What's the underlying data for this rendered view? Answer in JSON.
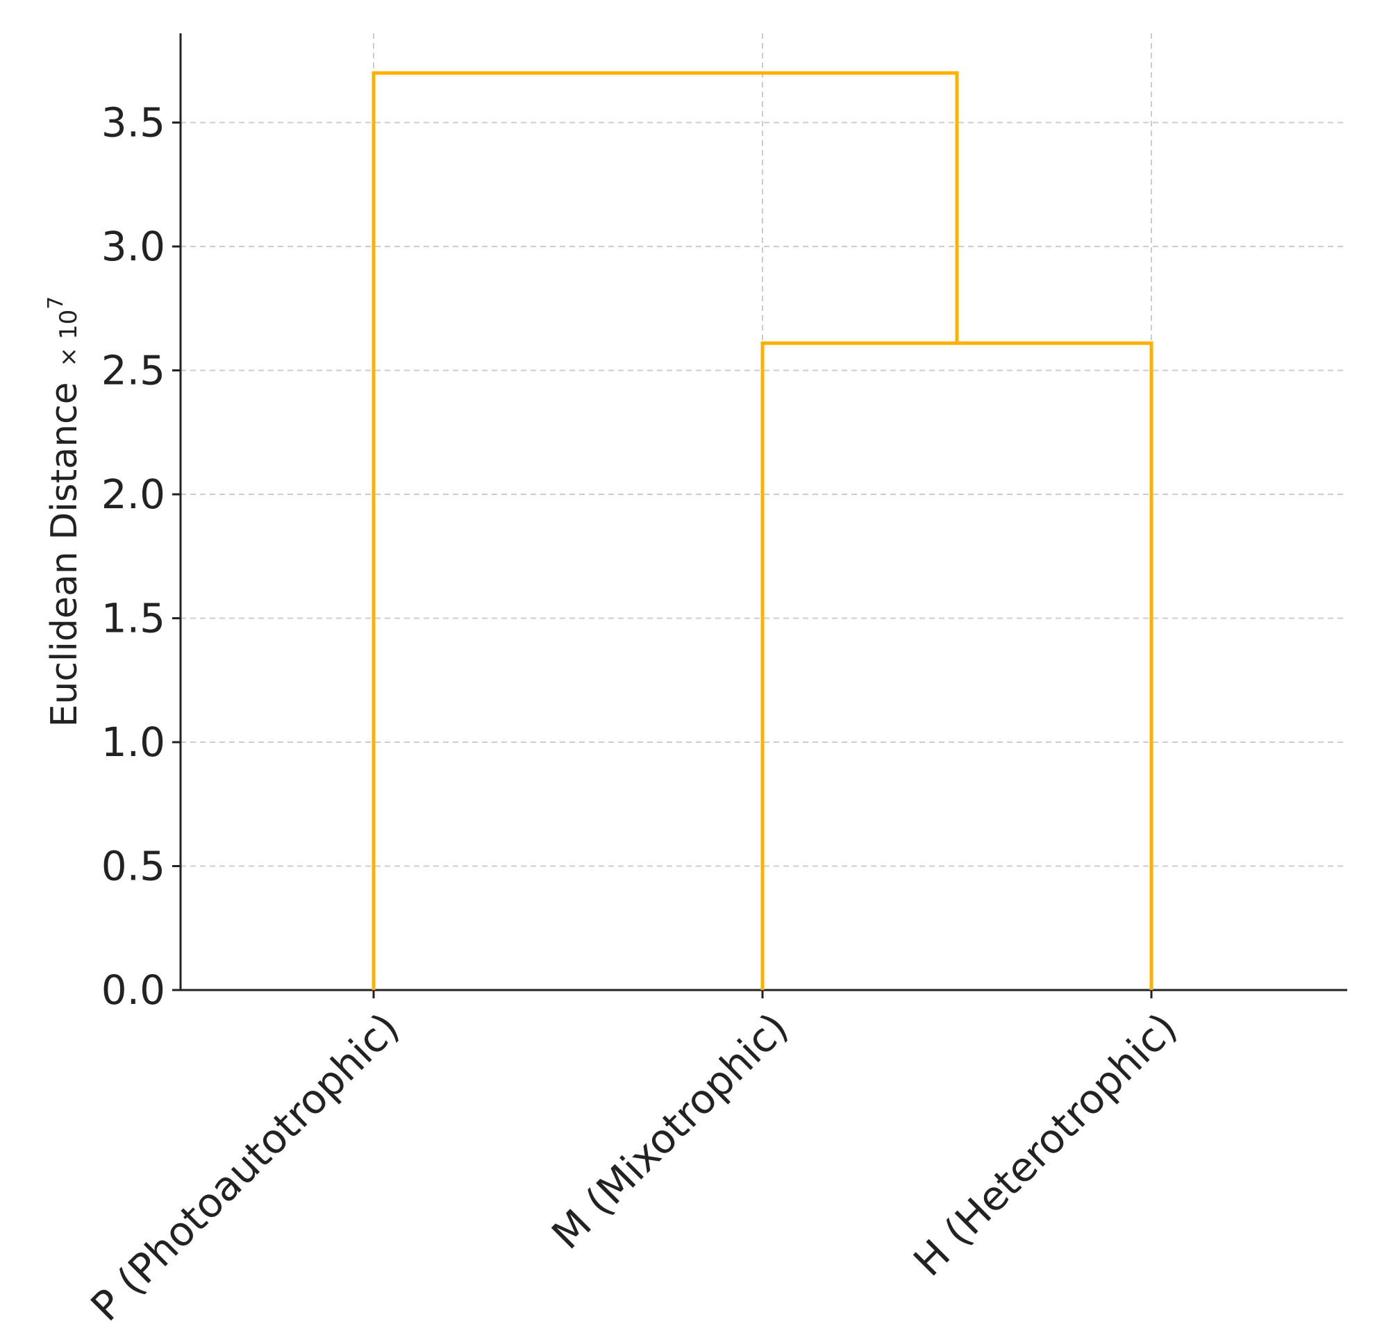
{
  "chart_data": {
    "type": "dendrogram",
    "title": "",
    "ylabel": "Euclidean Distance",
    "ylabel_multiplier_prefix": "× 10",
    "ylabel_multiplier_exponent": "7",
    "ylim": [
      0,
      3.86
    ],
    "yticks": [
      0.0,
      0.5,
      1.0,
      1.5,
      2.0,
      2.5,
      3.0,
      3.5
    ],
    "ytick_labels": [
      "0.0",
      "0.5",
      "1.0",
      "1.5",
      "2.0",
      "2.5",
      "3.0",
      "3.5"
    ],
    "grid": true,
    "leaves": [
      "P (Photoautotrophic)",
      "M (Mixotrophic)",
      "H (Heterotrophic)"
    ],
    "merges": [
      {
        "left": "M (Mixotrophic)",
        "right": "H (Heterotrophic)",
        "height": 2.61
      },
      {
        "left": "P (Photoautotrophic)",
        "right": "M (Mixotrophic) + H (Heterotrophic)",
        "height": 3.7
      }
    ],
    "line_color": "#FFB000"
  }
}
